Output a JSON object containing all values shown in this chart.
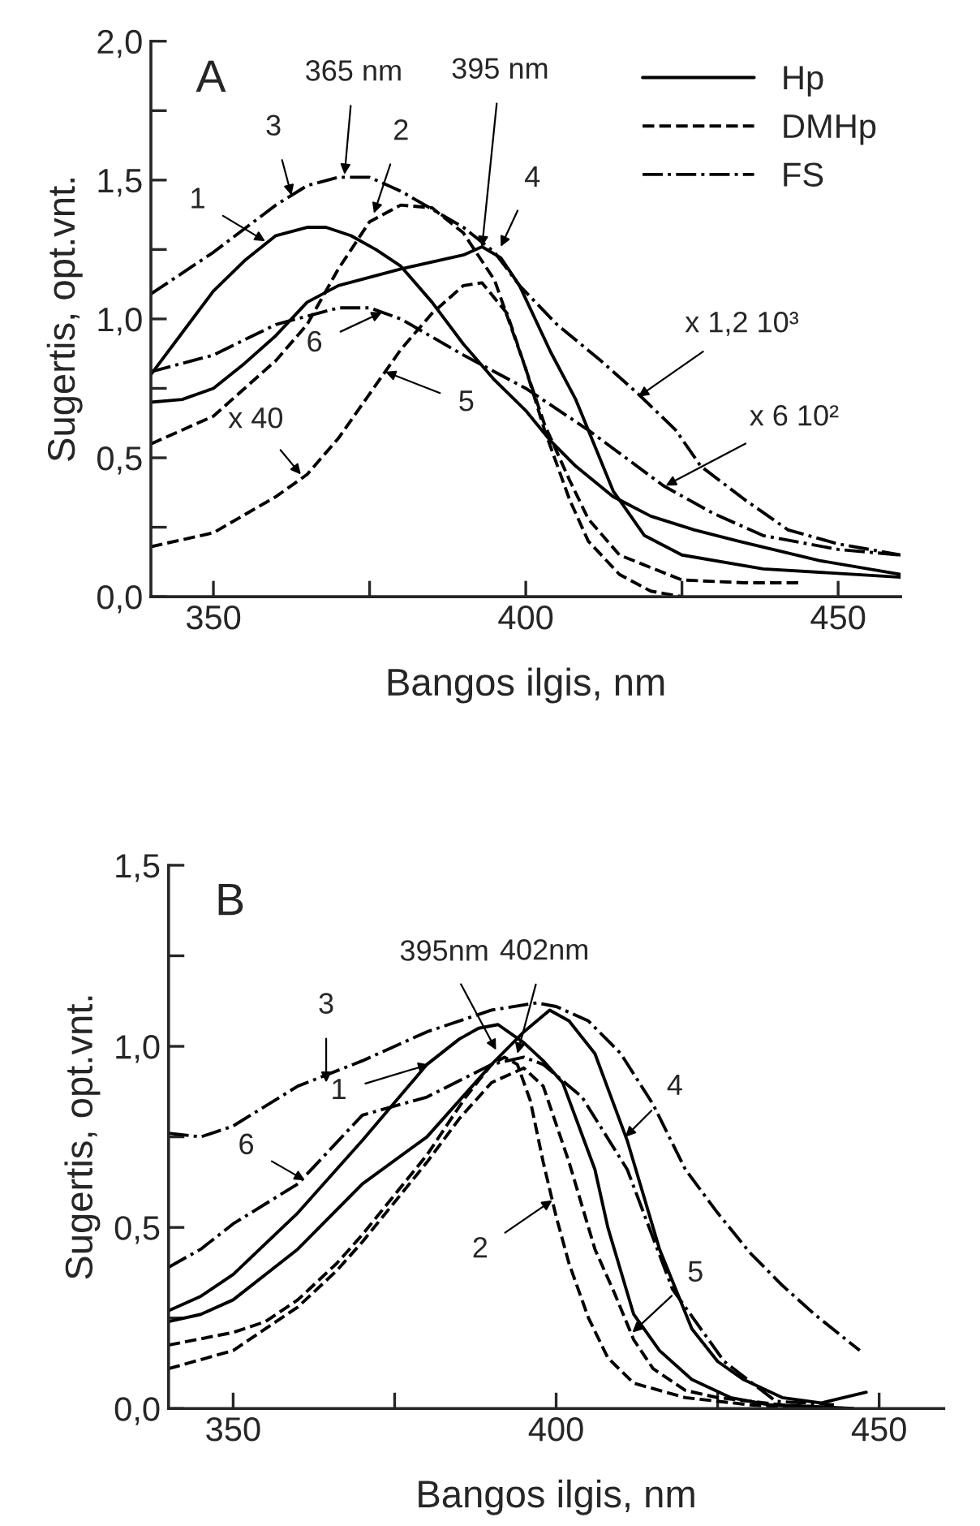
{
  "chart_data": [
    {
      "type": "line",
      "title": "A",
      "xlabel": "Bangos ilgis, nm",
      "ylabel": "Sugertis, opt.vnt.",
      "legend": "top right",
      "xlim": [
        340,
        460
      ],
      "xticks": [
        350,
        400,
        450
      ],
      "ylim": [
        0,
        2
      ],
      "yticks": [
        {
          "value": 0,
          "label": "0,0"
        },
        {
          "value": 0.5,
          "label": "0,5"
        },
        {
          "value": 1.0,
          "label": "1,0"
        },
        {
          "value": 1.5,
          "label": "1,5"
        },
        {
          "value": 2.0,
          "label": "2,0"
        }
      ],
      "series": [
        {
          "name": "Hp",
          "color": "#000000",
          "line_style": "solid",
          "x": [
            340,
            345,
            350,
            355,
            360,
            365,
            368,
            372,
            376,
            380,
            385,
            390,
            395,
            400,
            404,
            408,
            414,
            420,
            427,
            434,
            447,
            460
          ],
          "values": [
            0.8,
            0.95,
            1.1,
            1.21,
            1.3,
            1.33,
            1.33,
            1.3,
            1.25,
            1.19,
            1.06,
            0.91,
            0.78,
            0.67,
            0.56,
            0.47,
            0.36,
            0.29,
            0.24,
            0.2,
            0.13,
            0.08
          ]
        },
        {
          "name": "DMHp",
          "color": "#000000",
          "line_style": "dashed",
          "x": [
            340,
            350,
            360,
            365,
            370,
            375,
            380,
            385,
            390,
            395,
            400,
            403,
            407,
            410,
            415,
            420,
            425
          ],
          "values": [
            0.55,
            0.65,
            0.85,
            0.98,
            1.18,
            1.35,
            1.41,
            1.4,
            1.31,
            1.14,
            0.82,
            0.6,
            0.35,
            0.2,
            0.08,
            0.02,
            0.0
          ]
        },
        {
          "name": "FS",
          "color": "#000000",
          "line_style": "dashdot",
          "x": [
            340,
            350,
            360,
            365,
            370,
            375,
            380,
            390,
            395,
            399,
            405,
            412,
            418,
            424,
            428,
            435,
            442,
            450,
            460
          ],
          "values": [
            1.09,
            1.24,
            1.41,
            1.48,
            1.51,
            1.51,
            1.46,
            1.33,
            1.24,
            1.12,
            0.98,
            0.85,
            0.73,
            0.6,
            0.47,
            0.35,
            0.24,
            0.19,
            0.15
          ]
        },
        {
          "color": "#000000",
          "line_style": "solid",
          "x": [
            340,
            345,
            350,
            355,
            360,
            365,
            370,
            380,
            390,
            393,
            396,
            399,
            404,
            408,
            414,
            419,
            425,
            438,
            460
          ],
          "values": [
            0.7,
            0.71,
            0.75,
            0.84,
            0.94,
            1.06,
            1.12,
            1.18,
            1.23,
            1.26,
            1.22,
            1.12,
            0.88,
            0.71,
            0.38,
            0.22,
            0.15,
            0.1,
            0.07
          ]
        },
        {
          "color": "#000000",
          "line_style": "dashed",
          "x": [
            340,
            350,
            360,
            365,
            370,
            375,
            380,
            385,
            390,
            393,
            397,
            400,
            403,
            407,
            410,
            415,
            425,
            435,
            444
          ],
          "values": [
            0.18,
            0.23,
            0.36,
            0.44,
            0.57,
            0.73,
            0.89,
            1.02,
            1.12,
            1.13,
            1.02,
            0.82,
            0.62,
            0.42,
            0.28,
            0.15,
            0.06,
            0.05,
            0.05
          ]
        },
        {
          "color": "#000000",
          "line_style": "dashdot",
          "x": [
            340,
            350,
            360,
            370,
            375,
            380,
            390,
            395,
            400,
            410,
            416,
            422,
            430,
            438,
            450,
            460
          ],
          "values": [
            0.81,
            0.87,
            0.98,
            1.04,
            1.04,
            1.0,
            0.87,
            0.81,
            0.75,
            0.6,
            0.5,
            0.4,
            0.3,
            0.22,
            0.17,
            0.15
          ]
        }
      ],
      "annotations": [
        {
          "text": "365 nm",
          "x": 371,
          "y": 1.52
        },
        {
          "text": "395 nm",
          "x": 393,
          "y": 1.26
        },
        {
          "text": "1",
          "x": 358.3,
          "y": 1.28
        },
        {
          "text": "2",
          "x": 375.7,
          "y": 1.38
        },
        {
          "text": "3",
          "x": 362.5,
          "y": 1.445
        },
        {
          "text": "4",
          "x": 396,
          "y": 1.26
        },
        {
          "text": "5",
          "x": 377.5,
          "y": 0.81
        },
        {
          "text": "6",
          "x": 377,
          "y": 1.024
        },
        {
          "text": "x 40",
          "x": 364,
          "y": 0.44
        },
        {
          "text": "x 1,2 10³",
          "x": 418,
          "y": 0.72
        },
        {
          "text": "x 6 10²",
          "x": 422.4,
          "y": 0.4
        }
      ]
    },
    {
      "type": "line",
      "title": "B",
      "xlabel": "Bangos ilgis, nm",
      "ylabel": "Sugertis, opt.vnt.",
      "xlim": [
        340,
        460
      ],
      "xticks": [
        350,
        400,
        450
      ],
      "ylim": [
        0,
        1.5
      ],
      "yticks": [
        {
          "value": 0,
          "label": "0,0"
        },
        {
          "value": 0.5,
          "label": "0,5"
        },
        {
          "value": 1.0,
          "label": "1,0"
        },
        {
          "value": 1.5,
          "label": "1,5"
        }
      ],
      "series": [
        {
          "color": "#000000",
          "line_style": "solid",
          "x": [
            340,
            345,
            350,
            360,
            370,
            380,
            385,
            388,
            391,
            395,
            398,
            401,
            406,
            408,
            412,
            416,
            421,
            427,
            433,
            440,
            446
          ],
          "values": [
            0.27,
            0.31,
            0.37,
            0.54,
            0.74,
            0.95,
            1.02,
            1.05,
            1.06,
            1.01,
            0.96,
            0.9,
            0.66,
            0.5,
            0.26,
            0.16,
            0.08,
            0.03,
            0.01,
            0.005,
            0.0
          ]
        },
        {
          "color": "#000000",
          "line_style": "dashed",
          "x": [
            340,
            350,
            355,
            360,
            366,
            370,
            380,
            386,
            390,
            392,
            394,
            396,
            398,
            400,
            402,
            405,
            408,
            412,
            420,
            430,
            440
          ],
          "values": [
            0.175,
            0.21,
            0.24,
            0.3,
            0.4,
            0.48,
            0.7,
            0.86,
            0.95,
            0.97,
            0.95,
            0.85,
            0.68,
            0.53,
            0.4,
            0.25,
            0.14,
            0.07,
            0.03,
            0.01,
            0.0
          ]
        },
        {
          "color": "#000000",
          "line_style": "dashdot",
          "x": [
            340,
            345,
            350,
            360,
            370,
            380,
            390,
            397,
            400,
            405,
            410,
            415,
            420,
            425,
            430,
            435,
            440,
            447
          ],
          "values": [
            0.76,
            0.75,
            0.78,
            0.89,
            0.96,
            1.04,
            1.1,
            1.12,
            1.11,
            1.07,
            0.98,
            0.84,
            0.66,
            0.54,
            0.43,
            0.34,
            0.26,
            0.16
          ]
        },
        {
          "color": "#000000",
          "line_style": "solid",
          "x": [
            340,
            345,
            350,
            360,
            370,
            380,
            390,
            395,
            399,
            402,
            406,
            411,
            416,
            421,
            425,
            429,
            435,
            441,
            448
          ],
          "values": [
            0.24,
            0.26,
            0.3,
            0.44,
            0.62,
            0.75,
            0.95,
            1.04,
            1.1,
            1.07,
            0.98,
            0.74,
            0.44,
            0.22,
            0.13,
            0.08,
            0.03,
            0.015,
            0.045
          ]
        },
        {
          "color": "#000000",
          "line_style": "dashed",
          "x": [
            340,
            350,
            360,
            366,
            370,
            380,
            385,
            390,
            395,
            398,
            402,
            406,
            409,
            412,
            415,
            420,
            425,
            435,
            445
          ],
          "values": [
            0.11,
            0.16,
            0.28,
            0.38,
            0.46,
            0.68,
            0.8,
            0.9,
            0.94,
            0.89,
            0.68,
            0.44,
            0.32,
            0.19,
            0.11,
            0.05,
            0.03,
            0.01,
            0.0
          ]
        },
        {
          "color": "#000000",
          "line_style": "dashdot",
          "x": [
            340,
            345,
            350,
            360,
            370,
            380,
            390,
            395,
            398,
            404,
            411,
            418,
            426,
            434,
            443
          ],
          "values": [
            0.39,
            0.44,
            0.51,
            0.62,
            0.81,
            0.86,
            0.95,
            0.97,
            0.95,
            0.86,
            0.66,
            0.33,
            0.13,
            0.02,
            0.01
          ]
        }
      ],
      "annotations": [
        {
          "text": "395nm",
          "x": 390.7,
          "y": 0.99
        },
        {
          "text": "402nm",
          "x": 394,
          "y": 0.98
        },
        {
          "text": "1",
          "x": 380.3,
          "y": 0.95
        },
        {
          "text": "2",
          "x": 399.4,
          "y": 0.575
        },
        {
          "text": "3",
          "x": 364.4,
          "y": 0.9
        },
        {
          "text": "4",
          "x": 410.7,
          "y": 0.75
        },
        {
          "text": "5",
          "x": 411.8,
          "y": 0.21
        },
        {
          "text": "6",
          "x": 361.1,
          "y": 0.63
        }
      ]
    }
  ]
}
